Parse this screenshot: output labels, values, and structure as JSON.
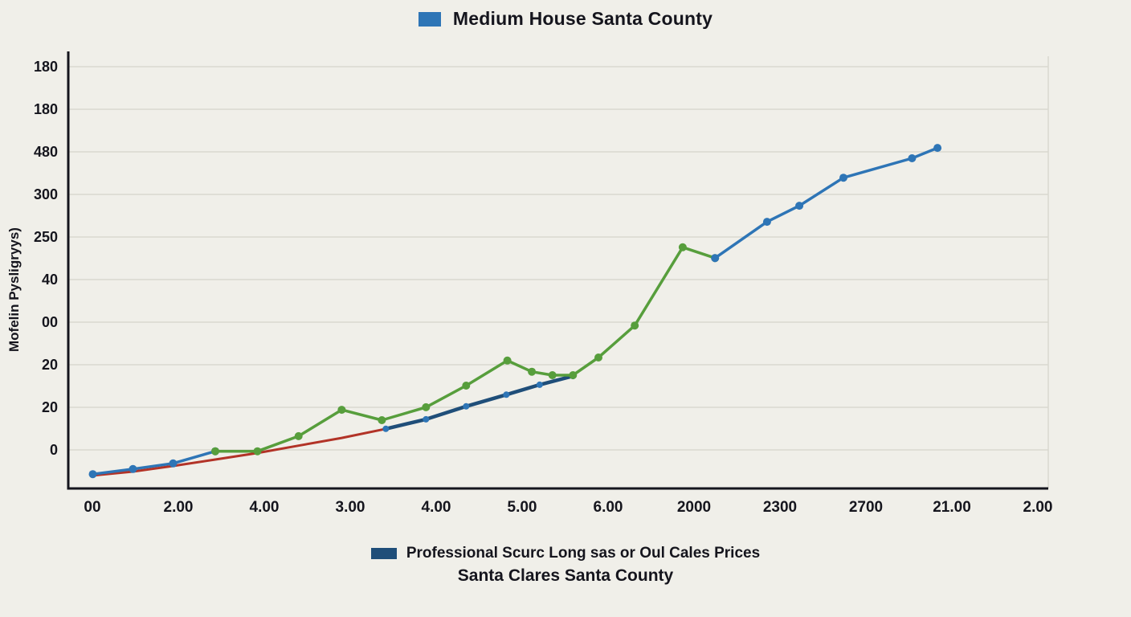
{
  "page": {
    "background_color": "#f0efe9",
    "text_color": "#15151d"
  },
  "chart": {
    "title": "Medium House Santa County",
    "y_axis_label": "Mofelin Pysligryys)",
    "legend_top": {
      "label": "Medium House Santa County",
      "color": "#2e75b6"
    },
    "legend_bottom": {
      "label": "Professional Scurc  Long sas or Oul Cales Prices",
      "color": "#1f4e79"
    },
    "subtitle": "Santa Clares Santa County"
  },
  "chart_data": {
    "type": "line",
    "title": "Medium House Santa County",
    "xlabel": "",
    "ylabel": "Mofelin Pysligryys)",
    "grid": true,
    "grid_color": "#d9d8cf",
    "axis_color": "#15151d",
    "legend_position": "top",
    "x_tick_labels": [
      "00",
      "2.00",
      "4.00",
      "3.00",
      "4.00",
      "5.00",
      "6.00",
      "2000",
      "2300",
      "2700",
      "21.00",
      "2.00"
    ],
    "y_tick_labels": [
      "180",
      "180",
      "480",
      "300",
      "250",
      "40",
      "00",
      "20",
      "20",
      "0"
    ],
    "note": "Series points are [x_percent_across_plot, y_percent_above_baseline] read from the figure.",
    "series": [
      {
        "name": "red-baseline-curve",
        "color": "#b23327",
        "width": 3,
        "markers": false,
        "points": [
          [
            2.5,
            3.0
          ],
          [
            6.6,
            3.9
          ],
          [
            10.7,
            5.2
          ],
          [
            15.0,
            6.7
          ],
          [
            19.3,
            8.2
          ],
          [
            23.5,
            9.9
          ],
          [
            27.9,
            11.7
          ],
          [
            32.4,
            13.8
          ]
        ]
      },
      {
        "name": "navy-mid-segment",
        "color": "#1f4e79",
        "width": 4.5,
        "markers": true,
        "marker_color": "#2e75b6",
        "marker_radius": 4,
        "points": [
          [
            32.4,
            13.8
          ],
          [
            36.5,
            16.0
          ],
          [
            40.6,
            19.0
          ],
          [
            44.7,
            21.7
          ],
          [
            48.1,
            24.0
          ],
          [
            51.5,
            26.0
          ]
        ]
      },
      {
        "name": "blue-early-segment",
        "color": "#2e75b6",
        "width": 3.5,
        "markers": true,
        "marker_radius": 5,
        "points": [
          [
            2.5,
            3.3
          ],
          [
            6.6,
            4.5
          ],
          [
            10.7,
            5.8
          ],
          [
            15.0,
            8.6
          ]
        ]
      },
      {
        "name": "green-series",
        "color": "#579e3c",
        "width": 3.5,
        "markers": true,
        "marker_radius": 5,
        "points": [
          [
            15.0,
            8.6
          ],
          [
            19.3,
            8.6
          ],
          [
            23.5,
            12.1
          ],
          [
            27.9,
            18.2
          ],
          [
            32.0,
            15.8
          ],
          [
            36.5,
            18.8
          ],
          [
            40.6,
            23.8
          ],
          [
            44.8,
            29.6
          ],
          [
            47.3,
            27.0
          ],
          [
            49.4,
            26.2
          ],
          [
            51.5,
            26.2
          ],
          [
            54.1,
            30.3
          ],
          [
            57.8,
            37.7
          ],
          [
            62.7,
            55.8
          ],
          [
            66.0,
            53.3
          ]
        ]
      },
      {
        "name": "blue-late-segment",
        "color": "#2e75b6",
        "width": 3.5,
        "markers": true,
        "marker_radius": 5,
        "points": [
          [
            66.0,
            53.3
          ],
          [
            71.3,
            61.7
          ],
          [
            74.6,
            65.4
          ],
          [
            79.1,
            71.9
          ],
          [
            86.1,
            76.4
          ],
          [
            88.7,
            78.8
          ]
        ]
      }
    ]
  }
}
